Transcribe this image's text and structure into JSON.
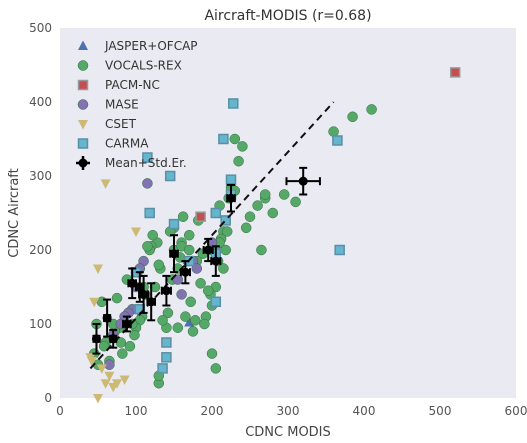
{
  "chart_data": {
    "type": "scatter",
    "title": "Aircraft-MODIS (r=0.68)",
    "xlabel": "CDNC MODIS",
    "ylabel": "CDNC Aircraft",
    "xlim": [
      0,
      600
    ],
    "ylim": [
      0,
      500
    ],
    "xticks": [
      0,
      100,
      200,
      300,
      400,
      500,
      600
    ],
    "yticks": [
      0,
      100,
      200,
      300,
      400,
      500
    ],
    "grid": false,
    "legend_position": "top-left",
    "colors": {
      "background": "#eaeaf2",
      "jasper": "#4c72b0",
      "vocals": "#55a868",
      "pacm": "#c44e52",
      "mase": "#8172b2",
      "cset": "#ccb974",
      "carma": "#64b5cd",
      "mean": "#000000"
    },
    "fit_line": {
      "style": "dashed",
      "x": [
        40,
        360
      ],
      "y": [
        40,
        400
      ]
    },
    "series": [
      {
        "name": "JASPER+OFCAP",
        "marker": "triangle-up",
        "x": [
          170
        ],
        "y": [
          102
        ]
      },
      {
        "name": "VOCALS-REX",
        "marker": "circle",
        "x": [
          410,
          385,
          360,
          310,
          295,
          265,
          270,
          240,
          235,
          230,
          225,
          222,
          218,
          215,
          212,
          210,
          208,
          205,
          205,
          200,
          200,
          198,
          195,
          192,
          190,
          188,
          185,
          182,
          180,
          178,
          175,
          172,
          170,
          168,
          165,
          162,
          160,
          158,
          155,
          150,
          148,
          145,
          142,
          140,
          135,
          132,
          130,
          128,
          125,
          122,
          120,
          118,
          115,
          112,
          110,
          108,
          105,
          102,
          100,
          98,
          95,
          92,
          90,
          88,
          85,
          82,
          80,
          78,
          75,
          72,
          70,
          65,
          60,
          58,
          55,
          50,
          48,
          45,
          130,
          130,
          150,
          155,
          160,
          170,
          200,
          205,
          210,
          215,
          220,
          230,
          250,
          245,
          260,
          270,
          280
        ],
        "y": [
          390,
          380,
          360,
          265,
          275,
          200,
          270,
          340,
          320,
          350,
          285,
          270,
          200,
          225,
          215,
          260,
          185,
          205,
          150,
          200,
          125,
          140,
          145,
          110,
          100,
          195,
          155,
          240,
          185,
          105,
          90,
          130,
          220,
          185,
          110,
          245,
          210,
          190,
          95,
          230,
          160,
          225,
          115,
          95,
          105,
          175,
          180,
          210,
          150,
          220,
          205,
          200,
          205,
          140,
          150,
          110,
          105,
          170,
          95,
          85,
          100,
          70,
          115,
          160,
          100,
          60,
          75,
          95,
          135,
          90,
          100,
          50,
          75,
          70,
          130,
          45,
          100,
          60,
          20,
          30,
          200,
          175,
          205,
          200,
          60,
          40,
          210,
          175,
          225,
          280,
          245,
          230,
          260,
          275,
          250
        ]
      },
      {
        "name": "PACM-NC",
        "marker": "square",
        "x": [
          520,
          185
        ],
        "y": [
          440,
          245
        ]
      },
      {
        "name": "MASE",
        "marker": "circle",
        "x": [
          115,
          110,
          105,
          100,
          95,
          90,
          85,
          80,
          70,
          65,
          155,
          160,
          175,
          180,
          200
        ],
        "y": [
          290,
          185,
          175,
          150,
          120,
          115,
          110,
          100,
          85,
          45,
          160,
          140,
          185,
          175,
          210
        ]
      },
      {
        "name": "CSET",
        "marker": "triangle-down",
        "x": [
          60,
          50,
          45,
          40,
          42,
          55,
          65,
          70,
          60,
          75,
          85,
          100,
          50
        ],
        "y": [
          290,
          175,
          130,
          55,
          50,
          40,
          30,
          15,
          20,
          20,
          25,
          225,
          0
        ]
      },
      {
        "name": "CARMA",
        "marker": "square",
        "x": [
          228,
          215,
          218,
          365,
          368,
          225,
          205,
          145,
          150,
          115,
          118,
          100,
          105,
          140,
          140,
          135,
          170,
          205,
          225,
          205
        ],
        "y": [
          398,
          350,
          240,
          348,
          200,
          295,
          250,
          300,
          235,
          325,
          250,
          170,
          120,
          75,
          55,
          40,
          185,
          130,
          275,
          195
        ]
      },
      {
        "name": "Mean+Std.Er.",
        "marker": "circle-errorbar",
        "x": [
          48,
          62,
          70,
          88,
          95,
          105,
          110,
          120,
          140,
          150,
          165,
          195,
          205,
          225,
          320
        ],
        "y": [
          80,
          108,
          80,
          100,
          155,
          150,
          140,
          130,
          145,
          195,
          170,
          200,
          185,
          270,
          293
        ],
        "x_err": [
          4,
          4,
          4,
          5,
          5,
          5,
          6,
          5,
          6,
          5,
          6,
          6,
          6,
          5,
          22
        ],
        "y_err": [
          20,
          25,
          12,
          10,
          20,
          20,
          25,
          25,
          20,
          25,
          15,
          15,
          20,
          18,
          18
        ]
      }
    ]
  }
}
